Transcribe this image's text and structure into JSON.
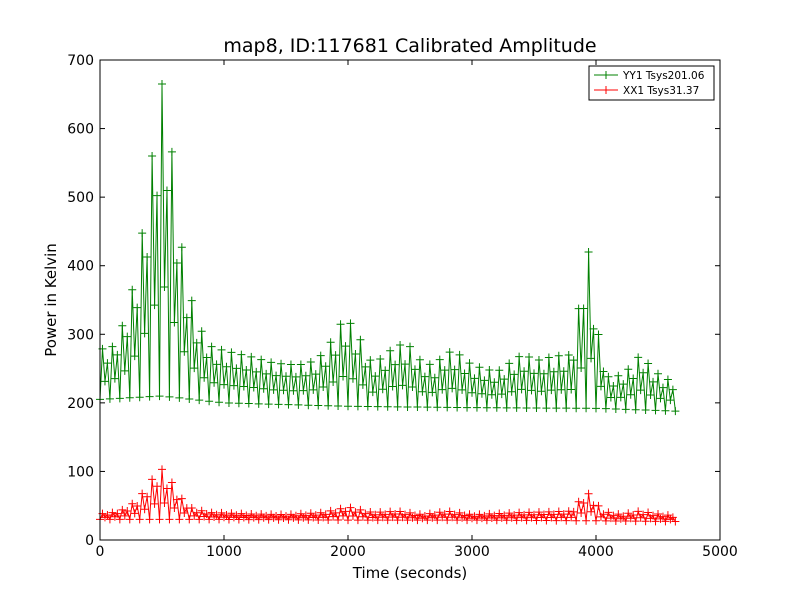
{
  "chart_data": {
    "type": "line",
    "title": "map8, ID:117681 Calibrated Amplitude",
    "xlabel": "Time (seconds)",
    "ylabel": "Power in Kelvin",
    "xlim": [
      0,
      5000
    ],
    "ylim": [
      0,
      700
    ],
    "xticks": [
      0,
      1000,
      2000,
      3000,
      4000,
      5000
    ],
    "yticks": [
      0,
      100,
      200,
      300,
      400,
      500,
      600,
      700
    ],
    "grid": false,
    "legend_position": "top-right",
    "marker": "plus",
    "series": [
      {
        "name": "YY1 Tsys201.06",
        "color": "#008000",
        "baseline": [
          [
            0,
            205
          ],
          [
            500,
            210
          ],
          [
            1000,
            200
          ],
          [
            2000,
            195
          ],
          [
            3000,
            193
          ],
          [
            4000,
            192
          ],
          [
            4640,
            188
          ]
        ],
        "envelope": [
          [
            0,
            278
          ],
          [
            100,
            282
          ],
          [
            200,
            320
          ],
          [
            300,
            395
          ],
          [
            380,
            500
          ],
          [
            440,
            590
          ],
          [
            480,
            665
          ],
          [
            520,
            665
          ],
          [
            560,
            612
          ],
          [
            600,
            520
          ],
          [
            650,
            440
          ],
          [
            700,
            375
          ],
          [
            800,
            310
          ],
          [
            900,
            282
          ],
          [
            1000,
            276
          ],
          [
            1200,
            268
          ],
          [
            1400,
            258
          ],
          [
            1600,
            255
          ],
          [
            1750,
            262
          ],
          [
            1850,
            285
          ],
          [
            1950,
            318
          ],
          [
            2000,
            322
          ],
          [
            2100,
            292
          ],
          [
            2200,
            255
          ],
          [
            2300,
            270
          ],
          [
            2400,
            285
          ],
          [
            2500,
            282
          ],
          [
            2600,
            258
          ],
          [
            2700,
            255
          ],
          [
            2800,
            275
          ],
          [
            2900,
            270
          ],
          [
            3000,
            255
          ],
          [
            3200,
            245
          ],
          [
            3400,
            270
          ],
          [
            3550,
            262
          ],
          [
            3650,
            268
          ],
          [
            3800,
            270
          ],
          [
            3880,
            360
          ],
          [
            3920,
            440
          ],
          [
            3960,
            400
          ],
          [
            4000,
            315
          ],
          [
            4100,
            238
          ],
          [
            4200,
            240
          ],
          [
            4300,
            255
          ],
          [
            4360,
            272
          ],
          [
            4450,
            250
          ],
          [
            4550,
            235
          ],
          [
            4640,
            232
          ]
        ]
      },
      {
        "name": "XX1 Tsys31.37",
        "color": "#ff0000",
        "baseline": [
          [
            0,
            30
          ],
          [
            1000,
            30
          ],
          [
            2000,
            29
          ],
          [
            3000,
            29
          ],
          [
            4000,
            28
          ],
          [
            4640,
            27
          ]
        ],
        "envelope": [
          [
            0,
            38
          ],
          [
            100,
            40
          ],
          [
            200,
            45
          ],
          [
            300,
            58
          ],
          [
            400,
            82
          ],
          [
            450,
            98
          ],
          [
            500,
            103
          ],
          [
            560,
            90
          ],
          [
            650,
            62
          ],
          [
            750,
            45
          ],
          [
            900,
            40
          ],
          [
            1200,
            38
          ],
          [
            1500,
            37
          ],
          [
            1800,
            40
          ],
          [
            2000,
            48
          ],
          [
            2200,
            40
          ],
          [
            2400,
            42
          ],
          [
            2600,
            37
          ],
          [
            2800,
            42
          ],
          [
            3000,
            37
          ],
          [
            3400,
            40
          ],
          [
            3800,
            42
          ],
          [
            3900,
            65
          ],
          [
            3950,
            68
          ],
          [
            4050,
            42
          ],
          [
            4200,
            37
          ],
          [
            4350,
            42
          ],
          [
            4500,
            38
          ],
          [
            4640,
            35
          ]
        ]
      }
    ],
    "sample_interval_seconds": 20,
    "x_max_seconds": 4640
  }
}
